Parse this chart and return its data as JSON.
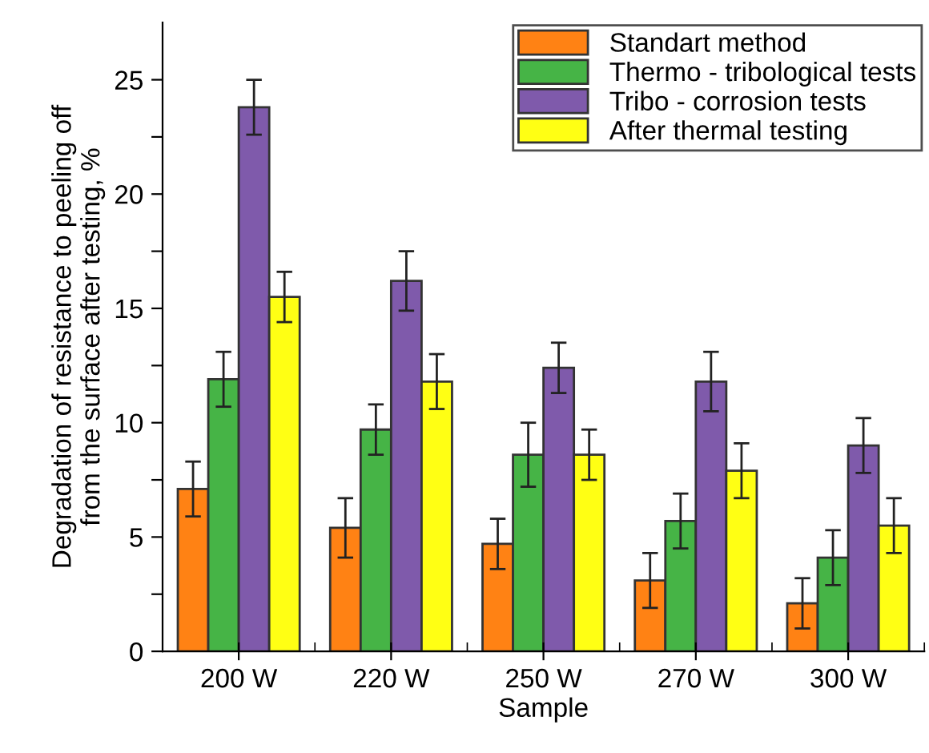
{
  "chart_data": {
    "type": "bar",
    "xlabel": "Sample",
    "ylabel": "Degradation of resistance to peeling off\nfrom the surface after testing, %",
    "categories": [
      "200 W",
      "220 W",
      "250 W",
      "270 W",
      "300 W"
    ],
    "series": [
      {
        "name": "Standart method",
        "color": "#ff8214",
        "values": [
          7.1,
          5.4,
          4.7,
          3.1,
          2.1
        ],
        "errors": [
          1.2,
          1.3,
          1.1,
          1.2,
          1.1
        ]
      },
      {
        "name": "Thermo - tribological tests",
        "color": "#46b446",
        "values": [
          11.9,
          9.7,
          8.6,
          5.7,
          4.1
        ],
        "errors": [
          1.2,
          1.1,
          1.4,
          1.2,
          1.2
        ]
      },
      {
        "name": "Tribo - corrosion tests",
        "color": "#7f5aab",
        "values": [
          23.8,
          16.2,
          12.4,
          11.8,
          9.0
        ],
        "errors": [
          1.2,
          1.3,
          1.1,
          1.3,
          1.2
        ]
      },
      {
        "name": "After thermal testing",
        "color": "#ffff14",
        "values": [
          15.5,
          11.8,
          8.6,
          7.9,
          5.5
        ],
        "errors": [
          1.1,
          1.2,
          1.1,
          1.2,
          1.2
        ]
      }
    ],
    "ylim": [
      0,
      27.5
    ],
    "yticks": [
      0,
      {
        "value": 2.5,
        "label": null
      },
      5,
      {
        "value": 7.5,
        "label": null
      },
      10,
      {
        "value": 12.5,
        "label": null
      },
      15,
      {
        "value": 17.5,
        "label": null
      },
      20,
      {
        "value": 22.5,
        "label": null
      },
      25
    ],
    "grid": false,
    "legend": "top right"
  }
}
